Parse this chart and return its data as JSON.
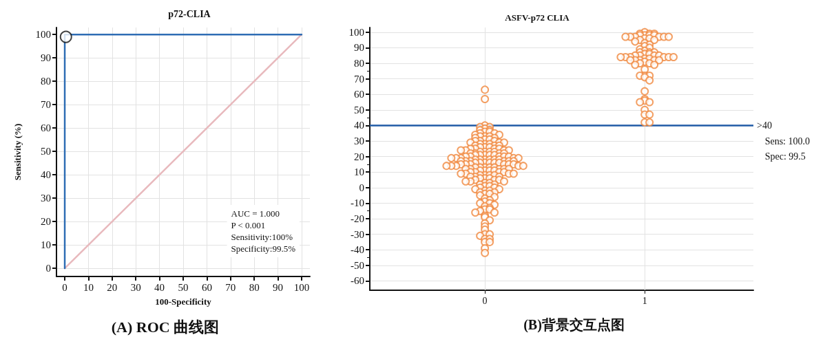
{
  "chart_data": [
    {
      "type": "line",
      "title": "p72-CLIA",
      "xlabel": "100-Specificity",
      "ylabel": "Sensitivity (%)",
      "xlim": [
        -3.5,
        103.5
      ],
      "xticks": [
        0,
        10,
        20,
        30,
        40,
        50,
        60,
        70,
        80,
        90,
        100
      ],
      "ylim": [
        -3.5,
        103
      ],
      "yticks": [
        0,
        10,
        20,
        30,
        40,
        50,
        60,
        70,
        80,
        90,
        100
      ],
      "grid": true,
      "marker": "none",
      "line_style": "solid",
      "series": [
        {
          "color": "#2e6db4",
          "x": [
            0,
            0,
            100
          ],
          "values": [
            0,
            100,
            100
          ]
        },
        {
          "color": "#e8b9bd",
          "x": [
            0,
            100
          ],
          "values": [
            0,
            100
          ]
        },
        {
          "type": "scatter",
          "marker": "circle",
          "color": "#111111",
          "x": [
            0.5
          ],
          "values": [
            99
          ]
        }
      ],
      "annotations": [
        "AUC = 1.000",
        "P < 0.001",
        "Sensitivity:100%",
        "Specificity:99.5%",
        "(A) ROC 曲线图"
      ]
    },
    {
      "type": "scatter",
      "title": "ASFV-p72 CLIA",
      "categories": [
        "0",
        "1"
      ],
      "ylim": [
        -66,
        103
      ],
      "yticks": [
        -60,
        -50,
        -40,
        -30,
        -20,
        -10,
        0,
        10,
        20,
        30,
        40,
        50,
        60,
        70,
        80,
        90,
        100
      ],
      "grid": true,
      "marker": "circle",
      "ref_lines": [
        {
          "axis": "y",
          "value": 40,
          "label": ">40",
          "color": "#1f5aa6"
        }
      ],
      "series": [
        {
          "color": "#f0883e",
          "x": [
            "0",
            "0",
            "0",
            "0",
            "0",
            "0",
            "0",
            "0",
            "0",
            "0",
            "0",
            "0",
            "0",
            "0",
            "0",
            "0",
            "0",
            "0",
            "0",
            "0",
            "0",
            "0",
            "0",
            "0",
            "0",
            "0",
            "0",
            "0",
            "0",
            "0",
            "0",
            "0",
            "0",
            "0",
            "0",
            "0",
            "0",
            "0",
            "0",
            "0",
            "0",
            "0",
            "0",
            "0",
            "0",
            "0",
            "0",
            "0",
            "0",
            "0",
            "0",
            "0",
            "0",
            "0",
            "0",
            "0",
            "0",
            "0",
            "0",
            "0",
            "0",
            "0",
            "0",
            "0",
            "0",
            "0",
            "0",
            "0",
            "0",
            "0",
            "0",
            "0",
            "0",
            "0",
            "0",
            "0",
            "0",
            "0",
            "0",
            "0",
            "0",
            "0",
            "0",
            "0",
            "0",
            "0",
            "0",
            "0",
            "0",
            "0",
            "0",
            "0",
            "0",
            "0",
            "0",
            "0",
            "0",
            "0",
            "0",
            "0",
            "0",
            "0",
            "0",
            "0",
            "0",
            "0",
            "0",
            "0",
            "0",
            "0",
            "0",
            "0",
            "0",
            "0",
            "0",
            "0",
            "0",
            "0",
            "0",
            "0",
            "0",
            "0",
            "0",
            "0",
            "0",
            "0",
            "0",
            "0",
            "0",
            "0",
            "0",
            "0",
            "0",
            "0",
            "0",
            "0",
            "0",
            "0",
            "0",
            "0",
            "0",
            "0",
            "0",
            "0",
            "0",
            "0",
            "0",
            "0",
            "0",
            "0",
            "0",
            "0",
            "0",
            "0",
            "0",
            "0",
            "0",
            "0",
            "0",
            "0",
            "0",
            "0",
            "0",
            "0",
            "0",
            "0",
            "0",
            "0",
            "0",
            "0",
            "0",
            "0",
            "0",
            "0",
            "0",
            "0",
            "0",
            "0",
            "0",
            "0"
          ],
          "values": [
            63,
            57,
            40,
            39,
            39,
            38,
            37,
            37,
            36,
            36,
            35,
            35,
            34,
            34,
            33,
            33,
            33,
            32,
            32,
            31,
            31,
            30,
            30,
            30,
            29,
            29,
            29,
            28,
            28,
            28,
            27,
            27,
            27,
            26,
            26,
            26,
            25,
            25,
            25,
            25,
            24,
            24,
            24,
            24,
            23,
            23,
            23,
            23,
            22,
            22,
            22,
            22,
            21,
            21,
            21,
            21,
            21,
            20,
            20,
            20,
            20,
            20,
            19,
            19,
            19,
            19,
            19,
            18,
            18,
            18,
            18,
            18,
            18,
            17,
            17,
            17,
            17,
            17,
            17,
            16,
            16,
            16,
            16,
            16,
            16,
            15,
            15,
            15,
            15,
            15,
            15,
            14,
            14,
            14,
            14,
            14,
            13,
            13,
            13,
            13,
            13,
            12,
            12,
            12,
            12,
            12,
            11,
            11,
            11,
            11,
            10,
            10,
            10,
            10,
            9,
            9,
            9,
            9,
            8,
            8,
            8,
            8,
            7,
            7,
            7,
            6,
            6,
            6,
            5,
            5,
            5,
            4,
            4,
            4,
            3,
            3,
            2,
            2,
            1,
            1,
            0,
            0,
            -1,
            -1,
            -2,
            -2,
            -3,
            -3,
            -4,
            -4,
            -5,
            -6,
            -7,
            -8,
            -9,
            -10,
            -10,
            -11,
            -12,
            -13,
            -14,
            -14,
            -15,
            -16,
            -16,
            -18,
            -19,
            -21,
            -23,
            -25,
            -27,
            -30,
            -30,
            -31,
            -33,
            -33,
            -35,
            -35,
            -39,
            -42
          ]
        },
        {
          "color": "#f0883e",
          "x": [
            "1",
            "1",
            "1",
            "1",
            "1",
            "1",
            "1",
            "1",
            "1",
            "1",
            "1",
            "1",
            "1",
            "1",
            "1",
            "1",
            "1",
            "1",
            "1",
            "1",
            "1",
            "1",
            "1",
            "1",
            "1",
            "1",
            "1",
            "1",
            "1",
            "1",
            "1",
            "1",
            "1",
            "1",
            "1",
            "1",
            "1",
            "1",
            "1",
            "1",
            "1",
            "1",
            "1",
            "1",
            "1",
            "1",
            "1",
            "1",
            "1",
            "1",
            "1",
            "1",
            "1",
            "1",
            "1",
            "1",
            "1",
            "1",
            "1",
            "1",
            "1",
            "1",
            "1",
            "1",
            "1",
            "1",
            "1",
            "1"
          ],
          "values": [
            100,
            99,
            99,
            99,
            98,
            98,
            98,
            98,
            97,
            97,
            97,
            97,
            97,
            97,
            96,
            96,
            95,
            95,
            94,
            93,
            92,
            91,
            90,
            89,
            88,
            87,
            87,
            87,
            86,
            86,
            85,
            85,
            85,
            85,
            84,
            84,
            84,
            84,
            84,
            84,
            83,
            83,
            82,
            82,
            82,
            82,
            82,
            81,
            80,
            80,
            79,
            79,
            76,
            72,
            72,
            72,
            71,
            69,
            62,
            57,
            56,
            55,
            55,
            50,
            47,
            47,
            42,
            42
          ]
        }
      ],
      "annotations": [
        "Sens: 100.0",
        "Spec: 99.5",
        "(B)背景交互点图"
      ]
    }
  ]
}
